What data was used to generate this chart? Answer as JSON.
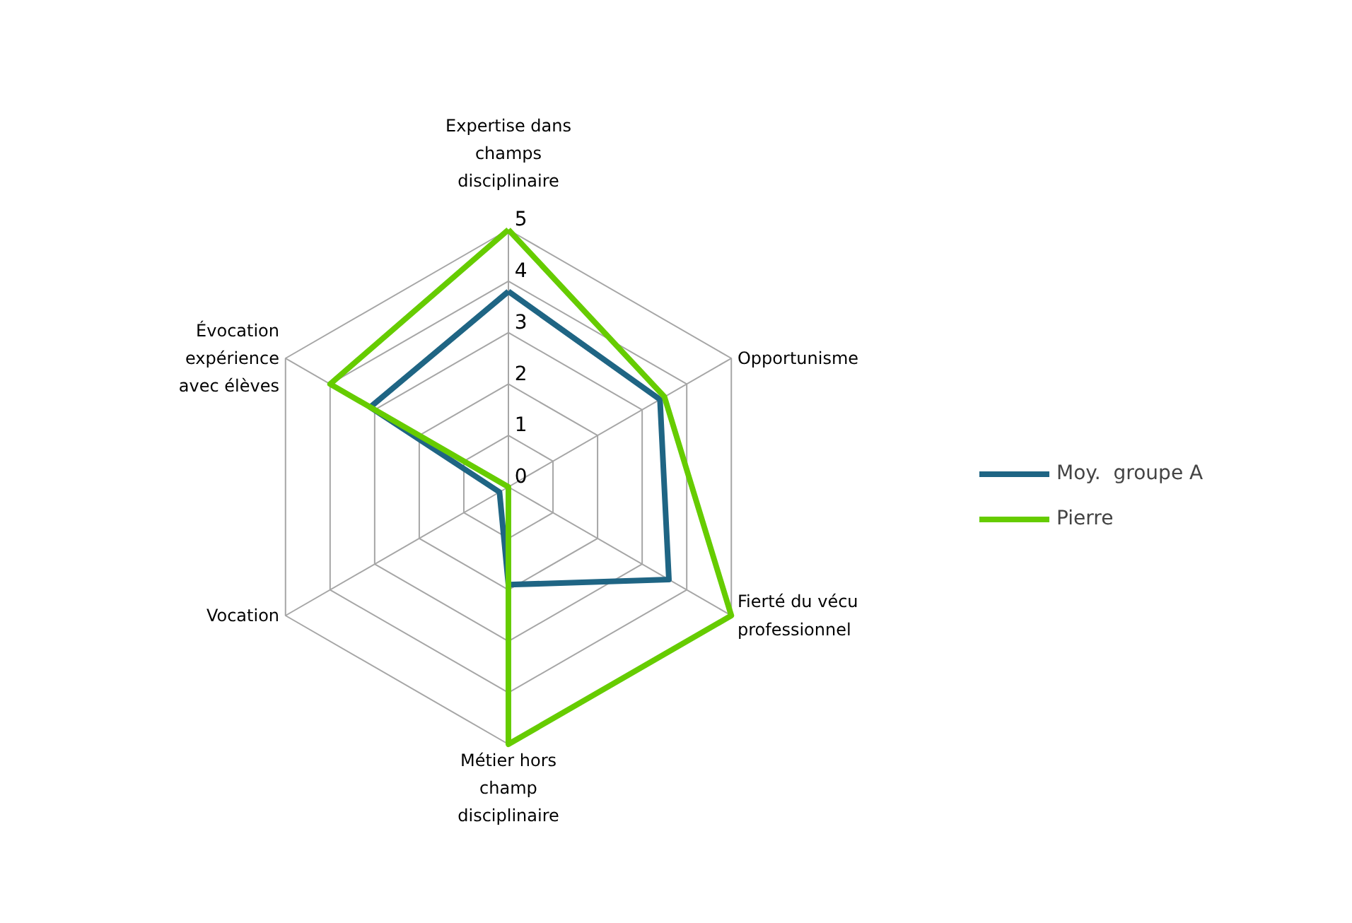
{
  "chart_data": {
    "type": "radar",
    "categories": [
      "Expertise dans\nchamps\ndisciplinaire",
      "Opportunisme",
      "Fierté du vécu\nprofessionnel",
      "Métier hors\nchamp\ndisciplinaire",
      "Vocation",
      "Évocation\nexpérience\navec élèves"
    ],
    "series": [
      {
        "name": "Moy.  groupe A",
        "color": "#1f6584",
        "values": [
          3.8,
          3.4,
          3.6,
          1.9,
          0.2,
          3.1
        ]
      },
      {
        "name": "Pierre",
        "color": "#66cc00",
        "values": [
          5,
          3.5,
          5,
          5,
          0,
          4
        ]
      }
    ],
    "ylim": [
      0,
      5
    ],
    "yticks": [
      0,
      1,
      2,
      3,
      4,
      5
    ],
    "grid": true,
    "legend": "right",
    "marker": "none",
    "line_style": "solid"
  }
}
